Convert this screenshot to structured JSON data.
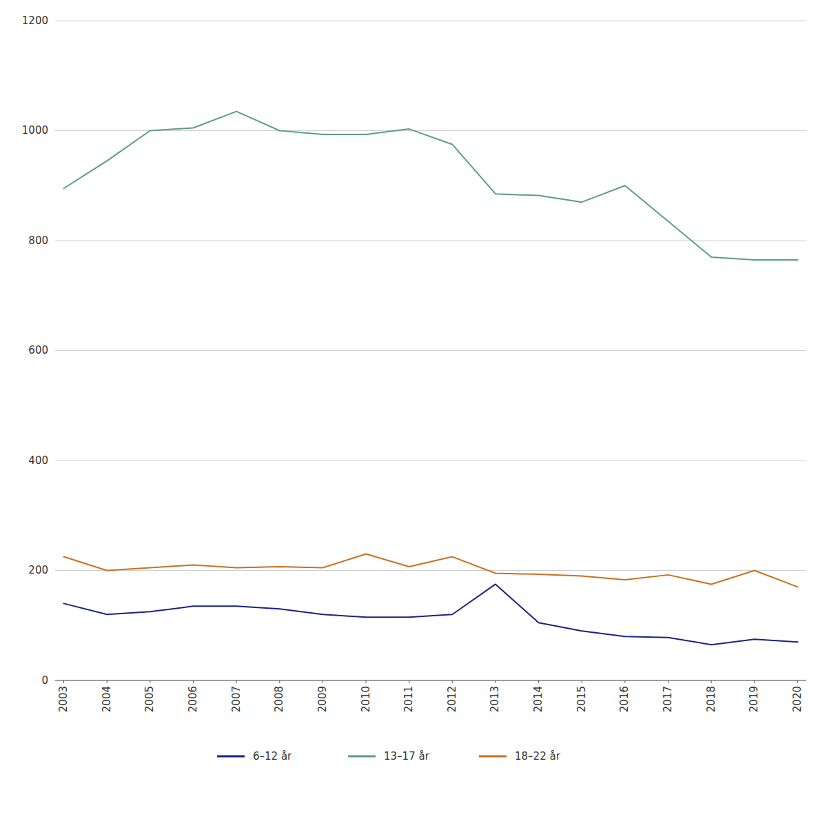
{
  "chart_data": {
    "type": "line",
    "x": [
      2003,
      2004,
      2005,
      2006,
      2007,
      2008,
      2009,
      2010,
      2011,
      2012,
      2013,
      2014,
      2015,
      2016,
      2017,
      2018,
      2019,
      2020
    ],
    "series": [
      {
        "name": "6–12 år",
        "color": "#1a237e",
        "values": [
          140,
          120,
          125,
          135,
          135,
          130,
          120,
          115,
          115,
          120,
          175,
          105,
          90,
          80,
          78,
          65,
          75,
          70
        ]
      },
      {
        "name": "13–17 år",
        "color": "#5a9e82",
        "values": [
          895,
          945,
          1000,
          1005,
          1035,
          1000,
          993,
          993,
          1003,
          975,
          885,
          882,
          870,
          900,
          835,
          770,
          765,
          765
        ]
      },
      {
        "name": "18–22 år",
        "color": "#c87020",
        "values": [
          225,
          200,
          205,
          210,
          205,
          207,
          205,
          230,
          207,
          225,
          195,
          193,
          190,
          183,
          192,
          175,
          200,
          170
        ]
      }
    ],
    "xlim": [
      2002.8,
      2020.2
    ],
    "xticks": [
      2003,
      2004,
      2005,
      2006,
      2007,
      2008,
      2009,
      2010,
      2011,
      2012,
      2013,
      2014,
      2015,
      2016,
      2017,
      2018,
      2019,
      2020
    ],
    "ylim": [
      0,
      1200
    ],
    "yticks": [
      0,
      200,
      400,
      600,
      800,
      1000,
      1200
    ],
    "grid": true,
    "legend": "bottom"
  }
}
